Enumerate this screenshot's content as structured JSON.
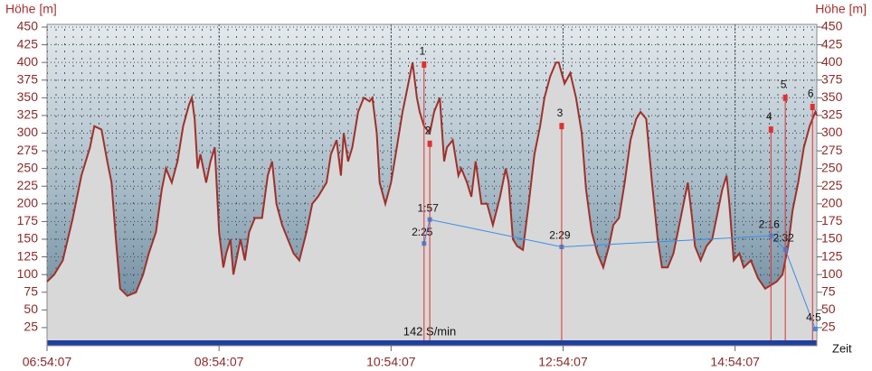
{
  "chart_data": {
    "type": "area",
    "y_label": "Höhe [m]",
    "x_label": "Zeit",
    "annotation": "142 S/min",
    "xlim": [
      0,
      537
    ],
    "xticks": [
      {
        "value": 0,
        "label": "06:54:07"
      },
      {
        "value": 120,
        "label": "08:54:07"
      },
      {
        "value": 240,
        "label": "10:54:07"
      },
      {
        "value": 360,
        "label": "12:54:07"
      },
      {
        "value": 480,
        "label": "14:54:07"
      }
    ],
    "ylim": [
      0,
      450
    ],
    "yticks": [
      25,
      50,
      75,
      100,
      125,
      150,
      175,
      200,
      225,
      250,
      275,
      300,
      325,
      350,
      375,
      400,
      425,
      450
    ],
    "y2lim": [
      4.4,
      -1.8
    ],
    "grid": true,
    "series": [
      {
        "color": "#a0302a",
        "x": [
          0,
          5,
          11,
          18,
          24,
          30,
          33,
          38,
          42,
          45,
          48,
          51,
          56,
          62,
          67,
          71,
          76,
          80,
          83,
          87,
          91,
          95,
          99,
          101,
          103,
          105,
          107,
          111,
          114,
          117,
          120,
          123,
          125,
          128,
          130,
          133,
          135,
          138,
          141,
          145,
          150,
          154,
          157,
          160,
          164,
          168,
          172,
          176,
          181,
          185,
          189,
          195,
          198,
          202,
          205,
          207,
          210,
          213,
          217,
          221,
          225,
          227,
          230,
          232,
          236,
          240,
          244,
          248,
          251,
          255,
          258,
          260,
          263,
          267,
          270,
          274,
          277,
          279,
          283,
          287,
          289,
          293,
          296,
          299,
          303,
          307,
          311,
          316,
          320,
          322,
          325,
          328,
          332,
          336,
          340,
          344,
          347,
          351,
          355,
          357,
          361,
          365,
          369,
          373,
          376,
          380,
          384,
          388,
          392,
          395,
          399,
          403,
          407,
          411,
          414,
          418,
          422,
          426,
          429,
          433,
          437,
          441,
          445,
          447,
          450,
          452,
          456,
          460,
          464,
          467,
          471,
          474,
          476,
          479,
          483,
          486,
          491,
          496,
          501,
          505,
          509,
          513,
          517,
          520,
          524,
          528,
          532,
          536,
          537
        ],
        "values": [
          90,
          100,
          120,
          180,
          240,
          280,
          310,
          305,
          260,
          230,
          150,
          80,
          70,
          75,
          100,
          130,
          160,
          220,
          250,
          230,
          260,
          310,
          340,
          350,
          320,
          250,
          270,
          230,
          260,
          280,
          160,
          110,
          130,
          150,
          100,
          130,
          150,
          120,
          160,
          180,
          180,
          240,
          260,
          200,
          170,
          150,
          130,
          120,
          160,
          200,
          210,
          230,
          270,
          290,
          240,
          300,
          260,
          280,
          330,
          350,
          345,
          350,
          300,
          230,
          200,
          230,
          280,
          330,
          360,
          400,
          350,
          330,
          310,
          300,
          330,
          350,
          260,
          280,
          290,
          240,
          250,
          230,
          210,
          260,
          200,
          200,
          170,
          210,
          250,
          230,
          150,
          140,
          135,
          200,
          270,
          310,
          350,
          380,
          400,
          400,
          370,
          385,
          350,
          300,
          220,
          160,
          130,
          110,
          140,
          170,
          180,
          230,
          290,
          320,
          330,
          320,
          230,
          150,
          110,
          110,
          130,
          170,
          210,
          230,
          180,
          140,
          120,
          140,
          150,
          180,
          220,
          240,
          200,
          120,
          130,
          110,
          120,
          95,
          80,
          85,
          90,
          100,
          140,
          190,
          230,
          280,
          310,
          330,
          325
        ]
      },
      {
        "color": "#3a8ee6",
        "axis": "y2",
        "x": [
          263,
          267,
          359,
          505,
          515,
          536
        ],
        "values": [
          2.4167,
          1.95,
          2.4833,
          2.2667,
          2.5333,
          4.0833
        ],
        "value_labels": [
          "2:25",
          "1:57",
          "2:29",
          "2:16",
          "2:32",
          "4:5"
        ]
      }
    ],
    "markers": {
      "color": "#e03030",
      "labels": [
        "1",
        "2",
        "3",
        "4",
        "5",
        "6"
      ],
      "x": [
        263,
        267,
        359,
        505,
        515,
        534
      ],
      "values": [
        397,
        285,
        310,
        305,
        350,
        337
      ]
    }
  }
}
